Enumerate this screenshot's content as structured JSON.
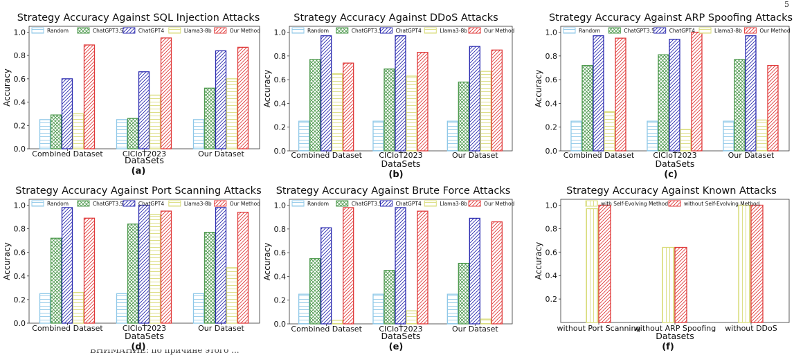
{
  "page": {
    "page_number": "5",
    "caption_fragment": "ВНИМАНИЕ: по причине этого ...",
    "subfigure_labels": [
      "(a)",
      "(b)",
      "(c)",
      "(d)",
      "(e)",
      "(f)"
    ]
  },
  "colors": {
    "Random": "#8fc8e8",
    "ChatGPT3.5": "#4e9a4e",
    "ChatGPT4": "#2b2bb0",
    "Llama3-8b": "#d9dc7a",
    "Our Method": "#e03a3a",
    "with Self-Evolving Method": "#d9dc7a",
    "without Self-Evolving Method": "#e03a3a"
  },
  "chart_data": [
    {
      "type": "bar",
      "title": "Strategy Accuracy Against SQL Injection Attacks",
      "xlabel": "DataSets",
      "ylabel": "Accuracy",
      "label": "(a)",
      "categories": [
        "Combined Dataset",
        "CICIoT2023",
        "Our Dataset"
      ],
      "ylim": [
        0,
        1.05
      ],
      "yticks": [
        "0.0",
        "0.2",
        "0.4",
        "0.6",
        "0.8",
        "1.0"
      ],
      "series": [
        {
          "name": "Random",
          "values": [
            0.25,
            0.25,
            0.25
          ]
        },
        {
          "name": "ChatGPT3.5",
          "values": [
            0.29,
            0.26,
            0.52
          ]
        },
        {
          "name": "ChatGPT4",
          "values": [
            0.6,
            0.66,
            0.84
          ]
        },
        {
          "name": "Llama3-8b",
          "values": [
            0.3,
            0.46,
            0.6
          ]
        },
        {
          "name": "Our Method",
          "values": [
            0.89,
            0.95,
            0.87
          ]
        }
      ]
    },
    {
      "type": "bar",
      "title": "Strategy Accuracy Against DDoS Attacks",
      "xlabel": "DataSets",
      "ylabel": "Accuracy",
      "label": "(b)",
      "categories": [
        "Combined Dataset",
        "CICIoT2023",
        "Our Dataset"
      ],
      "ylim": [
        0,
        1.05
      ],
      "yticks": [
        "0.0",
        "0.2",
        "0.4",
        "0.6",
        "0.8",
        "1.0"
      ],
      "series": [
        {
          "name": "Random",
          "values": [
            0.25,
            0.25,
            0.25
          ]
        },
        {
          "name": "ChatGPT3.5",
          "values": [
            0.77,
            0.69,
            0.58
          ]
        },
        {
          "name": "ChatGPT4",
          "values": [
            0.97,
            0.97,
            0.88
          ]
        },
        {
          "name": "Llama3-8b",
          "values": [
            0.65,
            0.63,
            0.67
          ]
        },
        {
          "name": "Our Method",
          "values": [
            0.74,
            0.83,
            0.85
          ]
        }
      ]
    },
    {
      "type": "bar",
      "title": "Strategy Accuracy Against ARP Spoofing Attacks",
      "xlabel": "DataSets",
      "ylabel": "Accuracy",
      "label": "(c)",
      "categories": [
        "Combined Dataset",
        "CICIoT2023",
        "Our Dataset"
      ],
      "ylim": [
        0,
        1.05
      ],
      "yticks": [
        "0.0",
        "0.2",
        "0.4",
        "0.6",
        "0.8",
        "1.0"
      ],
      "series": [
        {
          "name": "Random",
          "values": [
            0.25,
            0.25,
            0.25
          ]
        },
        {
          "name": "ChatGPT3.5",
          "values": [
            0.72,
            0.81,
            0.77
          ]
        },
        {
          "name": "ChatGPT4",
          "values": [
            0.97,
            0.94,
            0.97
          ]
        },
        {
          "name": "Llama3-8b",
          "values": [
            0.33,
            0.18,
            0.26
          ]
        },
        {
          "name": "Our Method",
          "values": [
            0.95,
            1.0,
            0.72
          ]
        }
      ]
    },
    {
      "type": "bar",
      "title": "Strategy Accuracy Against Port Scanning Attacks",
      "xlabel": "DataSets",
      "ylabel": "Accuracy",
      "label": "(d)",
      "categories": [
        "Combined Dataset",
        "CICIoT2023",
        "Our Dataset"
      ],
      "ylim": [
        0,
        1.05
      ],
      "yticks": [
        "0.0",
        "0.2",
        "0.4",
        "0.6",
        "0.8",
        "1.0"
      ],
      "series": [
        {
          "name": "Random",
          "values": [
            0.25,
            0.25,
            0.25
          ]
        },
        {
          "name": "ChatGPT3.5",
          "values": [
            0.72,
            0.84,
            0.77
          ]
        },
        {
          "name": "ChatGPT4",
          "values": [
            0.98,
            1.0,
            0.98
          ]
        },
        {
          "name": "Llama3-8b",
          "values": [
            0.26,
            0.92,
            0.47
          ]
        },
        {
          "name": "Our Method",
          "values": [
            0.89,
            0.95,
            0.94
          ]
        }
      ]
    },
    {
      "type": "bar",
      "title": "Strategy Accuracy Against Brute Force Attacks",
      "xlabel": "DataSets",
      "ylabel": "Accuracy",
      "label": "(e)",
      "categories": [
        "Combined Dataset",
        "CICIoT2023",
        "Our Dataset"
      ],
      "ylim": [
        0,
        1.05
      ],
      "yticks": [
        "0.0",
        "0.2",
        "0.4",
        "0.6",
        "0.8",
        "1.0"
      ],
      "series": [
        {
          "name": "Random",
          "values": [
            0.25,
            0.25,
            0.25
          ]
        },
        {
          "name": "ChatGPT3.5",
          "values": [
            0.55,
            0.45,
            0.51
          ]
        },
        {
          "name": "ChatGPT4",
          "values": [
            0.81,
            0.98,
            0.89
          ]
        },
        {
          "name": "Llama3-8b",
          "values": [
            0.03,
            0.11,
            0.04
          ]
        },
        {
          "name": "Our Method",
          "values": [
            0.98,
            0.95,
            0.86
          ]
        }
      ]
    },
    {
      "type": "bar",
      "title": "Strategy Accuracy Against Known Attacks",
      "xlabel": "Datasets",
      "ylabel": "Accuracy",
      "label": "(f)",
      "categories": [
        "without Port Scanning",
        "without ARP Spoofing",
        "without DDoS"
      ],
      "ylim": [
        0,
        1.05
      ],
      "yticks": [
        "0.2",
        "0.4",
        "0.6",
        "0.8",
        "1.0"
      ],
      "series": [
        {
          "name": "with Self-Evolving Method",
          "values": [
            0.97,
            0.64,
            1.0
          ]
        },
        {
          "name": "without Self-Evolving Method",
          "values": [
            1.0,
            0.64,
            1.0
          ]
        }
      ]
    }
  ]
}
